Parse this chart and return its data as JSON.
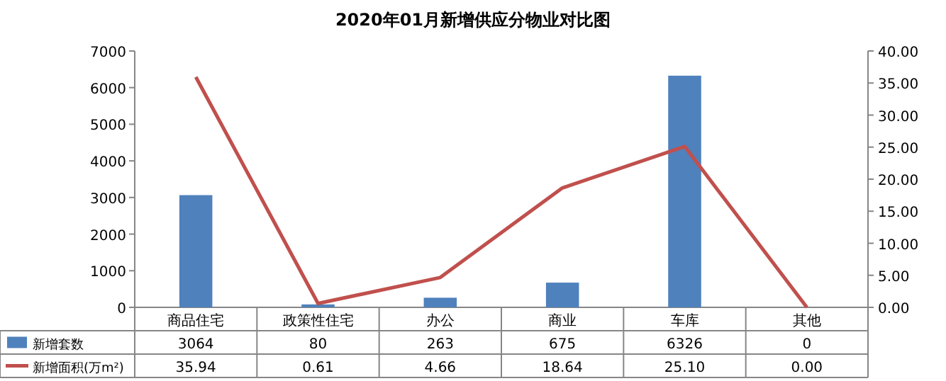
{
  "chart_data": {
    "type": "bar",
    "title": "2020年01月新增供应分物业对比图",
    "categories": [
      "商品住宅",
      "政策性住宅",
      "办公",
      "商业",
      "车库",
      "其他"
    ],
    "series": [
      {
        "name": "新增套数",
        "color": "#4f81bd",
        "values": [
          3064,
          80,
          263,
          675,
          6326,
          0
        ],
        "value_labels": [
          "3064",
          "80",
          "263",
          "675",
          "6326",
          "0"
        ]
      },
      {
        "name": "新增面积(万m²)",
        "type": "line",
        "axis": "y2",
        "color": "#c0504d",
        "values": [
          35.94,
          0.61,
          4.66,
          18.64,
          25.1,
          0.0
        ],
        "value_labels": [
          "35.94",
          "0.61",
          "4.66",
          "18.64",
          "25.10",
          "0.00"
        ]
      }
    ],
    "ylim": [
      0,
      7000
    ],
    "yticks": [
      0,
      1000,
      2000,
      3000,
      4000,
      5000,
      6000,
      7000
    ],
    "y2lim": [
      0,
      40
    ],
    "y2ticks": [
      {
        "value": 0,
        "label": "0.00"
      },
      {
        "value": 5,
        "label": "5.00"
      },
      {
        "value": 10,
        "label": "10.00"
      },
      {
        "value": 15,
        "label": "15.00"
      },
      {
        "value": 20,
        "label": "20.00"
      },
      {
        "value": 25,
        "label": "25.00"
      },
      {
        "value": 30,
        "label": "30.00"
      },
      {
        "value": 35,
        "label": "35.00"
      },
      {
        "value": 40,
        "label": "40.00"
      }
    ],
    "legend": "bottom",
    "grid": false
  }
}
